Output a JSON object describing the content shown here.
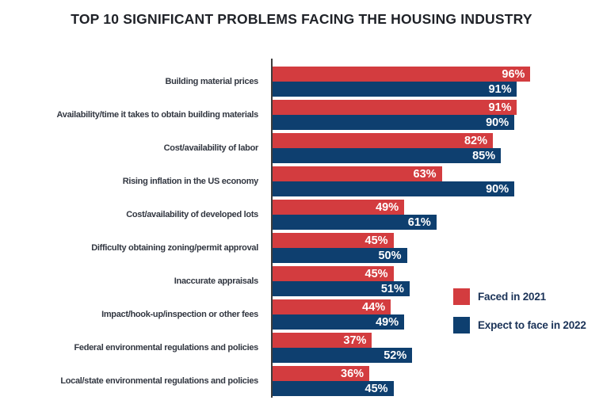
{
  "chart_data": {
    "type": "bar",
    "orientation": "horizontal",
    "title": "TOP 10 SIGNIFICANT PROBLEMS FACING THE HOUSING INDUSTRY",
    "categories": [
      "Building material prices",
      "Availability/time it takes to obtain building materials",
      "Cost/availability of labor",
      "Rising inflation in the US economy",
      "Cost/availability of developed lots",
      "Difficulty obtaining zoning/permit approval",
      "Inaccurate appraisals",
      "Impact/hook-up/inspection or other fees",
      "Federal environmental regulations and policies",
      "Local/state environmental regulations and policies"
    ],
    "series": [
      {
        "name": "Faced in 2021",
        "color": "#D33C3F",
        "values": [
          96,
          91,
          82,
          63,
          49,
          45,
          45,
          44,
          37,
          36
        ]
      },
      {
        "name": "Expect to face in 2022",
        "color": "#0E3F6F",
        "values": [
          91,
          90,
          85,
          90,
          61,
          50,
          51,
          49,
          52,
          45
        ]
      }
    ],
    "value_suffix": "%",
    "xlim": [
      0,
      100
    ],
    "grid": false,
    "data_labels": "inside-end",
    "legend_position": "right",
    "axis_color": "#3c3c3c"
  }
}
